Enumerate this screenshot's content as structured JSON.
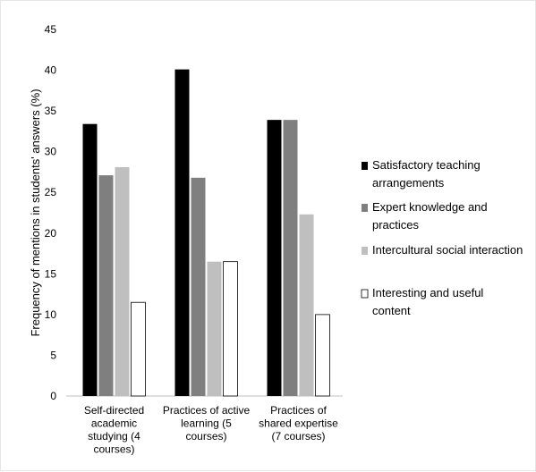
{
  "chart_data": {
    "type": "bar",
    "ylabel": "Frequency of mentions in students' answers (%)",
    "ylim": [
      0,
      45
    ],
    "yticks": [
      0,
      5,
      10,
      15,
      20,
      25,
      30,
      35,
      40,
      45
    ],
    "grid": false,
    "legend_position": "right",
    "categories": [
      [
        "Self-directed",
        "academic",
        "studying (4",
        "courses)"
      ],
      [
        "Practices of active",
        "learning (5",
        "courses)"
      ],
      [
        "Practices of",
        "shared expertise",
        "(7 courses)"
      ]
    ],
    "series": [
      {
        "name": "Satisfactory teaching arrangements",
        "name_lines": [
          "Satisfactory teaching",
          "arrangements"
        ],
        "color": "#000000",
        "values": [
          33.4,
          40.1,
          33.9
        ]
      },
      {
        "name": "Expert knowledge and practices",
        "name_lines": [
          "Expert knowledge and",
          "practices"
        ],
        "color": "#7f7f7f",
        "values": [
          27.1,
          26.8,
          33.9
        ]
      },
      {
        "name": "Intercultural social interaction",
        "name_lines": [
          "Intercultural social interaction"
        ],
        "color": "#bfbfbf",
        "values": [
          28.1,
          16.5,
          22.3
        ]
      },
      {
        "name": "Interesting and useful content",
        "name_lines": [
          "Interesting and useful",
          "content"
        ],
        "color": "#ffffff",
        "values": [
          11.5,
          16.5,
          10.0
        ]
      }
    ]
  }
}
